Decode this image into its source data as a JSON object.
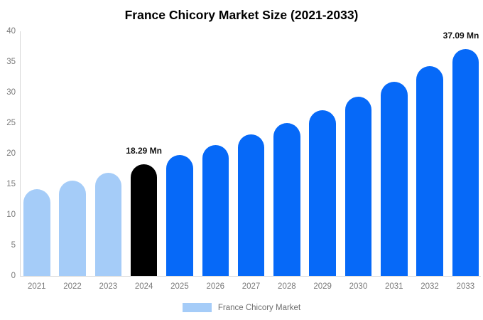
{
  "chart_data": {
    "type": "bar",
    "title": "France Chicory Market Size (2021-2033)",
    "xlabel": "",
    "ylabel": "",
    "unit": "Mn",
    "ylim": [
      0,
      40
    ],
    "yticks": [
      0,
      5,
      10,
      15,
      20,
      25,
      30,
      35,
      40
    ],
    "grid": false,
    "categories": [
      "2021",
      "2022",
      "2023",
      "2024",
      "2025",
      "2026",
      "2027",
      "2028",
      "2029",
      "2030",
      "2031",
      "2032",
      "2033"
    ],
    "values": [
      14.2,
      15.6,
      16.9,
      18.29,
      19.8,
      21.4,
      23.1,
      25.0,
      27.1,
      29.3,
      31.7,
      34.3,
      37.09
    ],
    "bars": [
      {
        "category": "2021",
        "value": 14.2,
        "color": "#A5CCF8",
        "label": ""
      },
      {
        "category": "2022",
        "value": 15.6,
        "color": "#A5CCF8",
        "label": ""
      },
      {
        "category": "2023",
        "value": 16.9,
        "color": "#A5CCF8",
        "label": ""
      },
      {
        "category": "2024",
        "value": 18.29,
        "color": "#000000",
        "label": "18.29 Mn"
      },
      {
        "category": "2025",
        "value": 19.8,
        "color": "#0669F8",
        "label": ""
      },
      {
        "category": "2026",
        "value": 21.4,
        "color": "#0669F8",
        "label": ""
      },
      {
        "category": "2027",
        "value": 23.1,
        "color": "#0669F8",
        "label": ""
      },
      {
        "category": "2028",
        "value": 25.0,
        "color": "#0669F8",
        "label": ""
      },
      {
        "category": "2029",
        "value": 27.1,
        "color": "#0669F8",
        "label": ""
      },
      {
        "category": "2030",
        "value": 29.3,
        "color": "#0669F8",
        "label": ""
      },
      {
        "category": "2031",
        "value": 31.7,
        "color": "#0669F8",
        "label": ""
      },
      {
        "category": "2032",
        "value": 34.3,
        "color": "#0669F8",
        "label": ""
      },
      {
        "category": "2033",
        "value": 37.09,
        "color": "#0669F8",
        "label": "37.09 Mn"
      }
    ],
    "legend": {
      "label": "France Chicory Market",
      "swatch_color": "#A5CCF8",
      "position": "bottom"
    },
    "colors": {
      "historical": "#A5CCF8",
      "base_year": "#000000",
      "forecast": "#0669F8",
      "axis_line": "#d8d8d8",
      "tick_text": "#7a7a7a",
      "title_text": "#000000"
    }
  }
}
